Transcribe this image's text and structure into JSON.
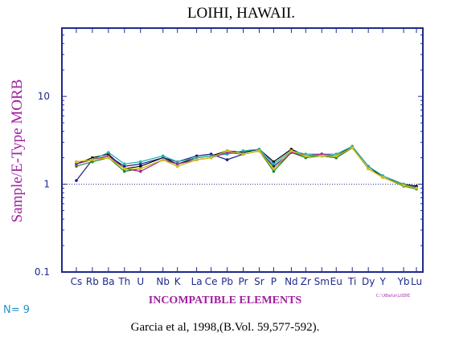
{
  "chart_data": {
    "type": "line",
    "title": "LOIHI, HAWAII.",
    "ylabel": "Sample/E-Type MORB",
    "xlabel": "INCOMPATIBLE ELEMENTS",
    "y_scale": "log",
    "ylim": [
      0.1,
      60
    ],
    "yticks": [
      {
        "value": 0.1,
        "label": "0.1"
      },
      {
        "value": 1,
        "label": "1"
      },
      {
        "value": 10,
        "label": "10"
      }
    ],
    "reference_line": {
      "value": 1,
      "style": "dotted"
    },
    "categories": [
      "Cs",
      "Rb",
      "Ba",
      "Th",
      "U",
      "Nb",
      "K",
      "La",
      "Ce",
      "Pb",
      "Pr",
      "Sr",
      "P",
      "Nd",
      "Zr",
      "Sm",
      "Eu",
      "Ti",
      "Dy",
      "Y",
      "Yb",
      "Lu"
    ],
    "x_positions": [
      1,
      2,
      3,
      4,
      5,
      6.4,
      7.3,
      8.5,
      9.4,
      10.4,
      11.4,
      12.4,
      13.3,
      14.4,
      15.3,
      16.3,
      17.2,
      18.2,
      19.2,
      20.1,
      21.4,
      22.2
    ],
    "grid": false,
    "series": [
      {
        "color": "#000000",
        "values": [
          1.7,
          2.0,
          2.2,
          1.5,
          1.6,
          2.0,
          1.7,
          2.0,
          2.1,
          2.4,
          2.3,
          2.5,
          1.8,
          2.5,
          2.1,
          2.2,
          2.1,
          2.7,
          1.6,
          1.2,
          1.0,
          0.95
        ]
      },
      {
        "color": "#1a1a8c",
        "values": [
          1.1,
          1.9,
          2.1,
          1.6,
          1.7,
          2.0,
          1.8,
          2.1,
          2.2,
          1.9,
          2.2,
          2.4,
          1.6,
          2.3,
          2.1,
          2.1,
          2.0,
          2.6,
          1.5,
          1.2,
          0.97,
          0.92
        ]
      },
      {
        "color": "#228b22",
        "values": [
          1.6,
          1.8,
          2.0,
          1.4,
          1.5,
          1.9,
          1.6,
          1.9,
          2.0,
          2.3,
          2.2,
          2.4,
          1.4,
          2.3,
          2.0,
          2.1,
          2.0,
          2.6,
          1.5,
          1.2,
          0.95,
          0.88
        ]
      },
      {
        "color": "#20b2aa",
        "values": [
          1.8,
          1.9,
          2.3,
          1.7,
          1.8,
          2.1,
          1.8,
          2.0,
          2.1,
          2.2,
          2.4,
          2.5,
          1.7,
          2.4,
          2.2,
          2.2,
          2.2,
          2.7,
          1.6,
          1.25,
          1.0,
          0.9
        ]
      },
      {
        "color": "#a020a0",
        "values": [
          1.7,
          1.9,
          2.1,
          1.5,
          1.4,
          1.9,
          1.7,
          1.9,
          2.0,
          2.3,
          2.2,
          2.4,
          1.5,
          2.3,
          2.1,
          2.2,
          2.1,
          2.6,
          1.5,
          1.2,
          0.97,
          0.9
        ]
      },
      {
        "color": "#d4c400",
        "values": [
          1.8,
          1.9,
          2.0,
          1.5,
          1.5,
          1.9,
          1.6,
          1.9,
          2.0,
          2.4,
          2.2,
          2.4,
          1.5,
          2.4,
          2.1,
          2.1,
          2.1,
          2.6,
          1.5,
          1.2,
          0.97,
          0.9
        ]
      }
    ]
  },
  "footer": {
    "n_label": "N= 9",
    "citation": "Garcia et al, 1998,(B.Vol. 59,577-592).",
    "file_ref": "C:\\XData\\LOIHI"
  }
}
